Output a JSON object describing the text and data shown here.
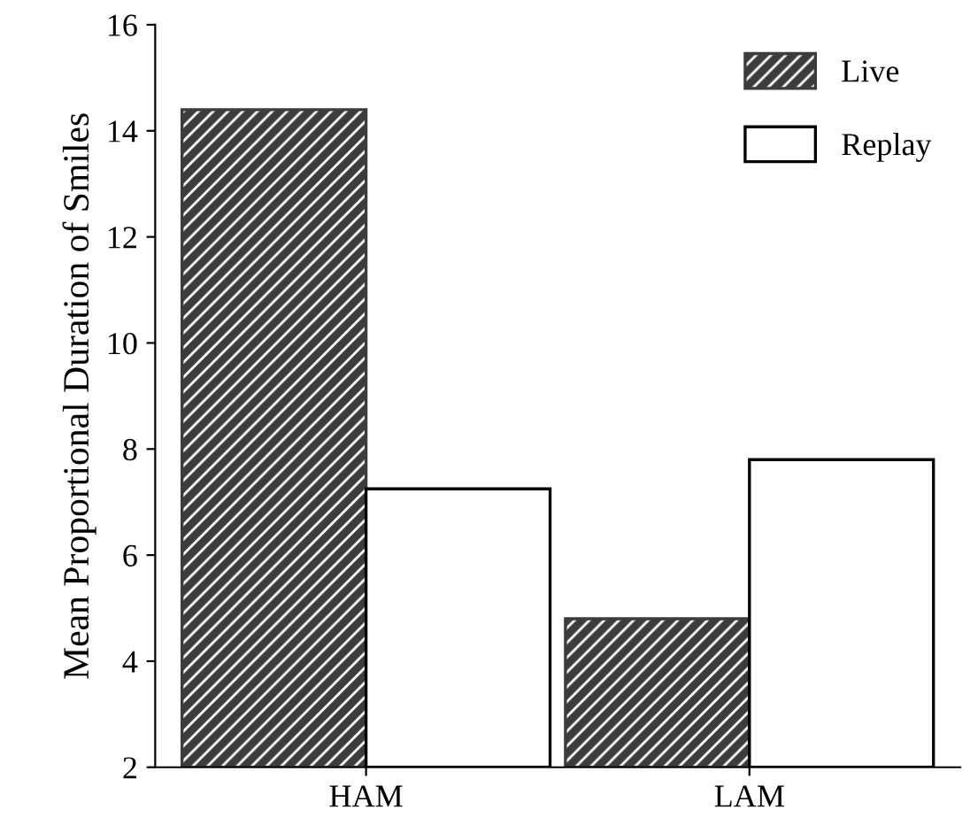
{
  "chart_data": {
    "type": "bar",
    "ylabel": "Mean Proportional Duration of Smiles",
    "categories": [
      "HAM",
      "LAM"
    ],
    "series": [
      {
        "name": "Live",
        "color": "#3c3c3c",
        "values": [
          14.4,
          4.8
        ]
      },
      {
        "name": "Replay",
        "color": "#ffffff",
        "values": [
          7.25,
          7.8
        ]
      }
    ],
    "ylim": [
      2,
      16
    ],
    "yticks": [
      2,
      4,
      6,
      8,
      10,
      12,
      14,
      16
    ],
    "legend": "top right",
    "grid": false
  }
}
